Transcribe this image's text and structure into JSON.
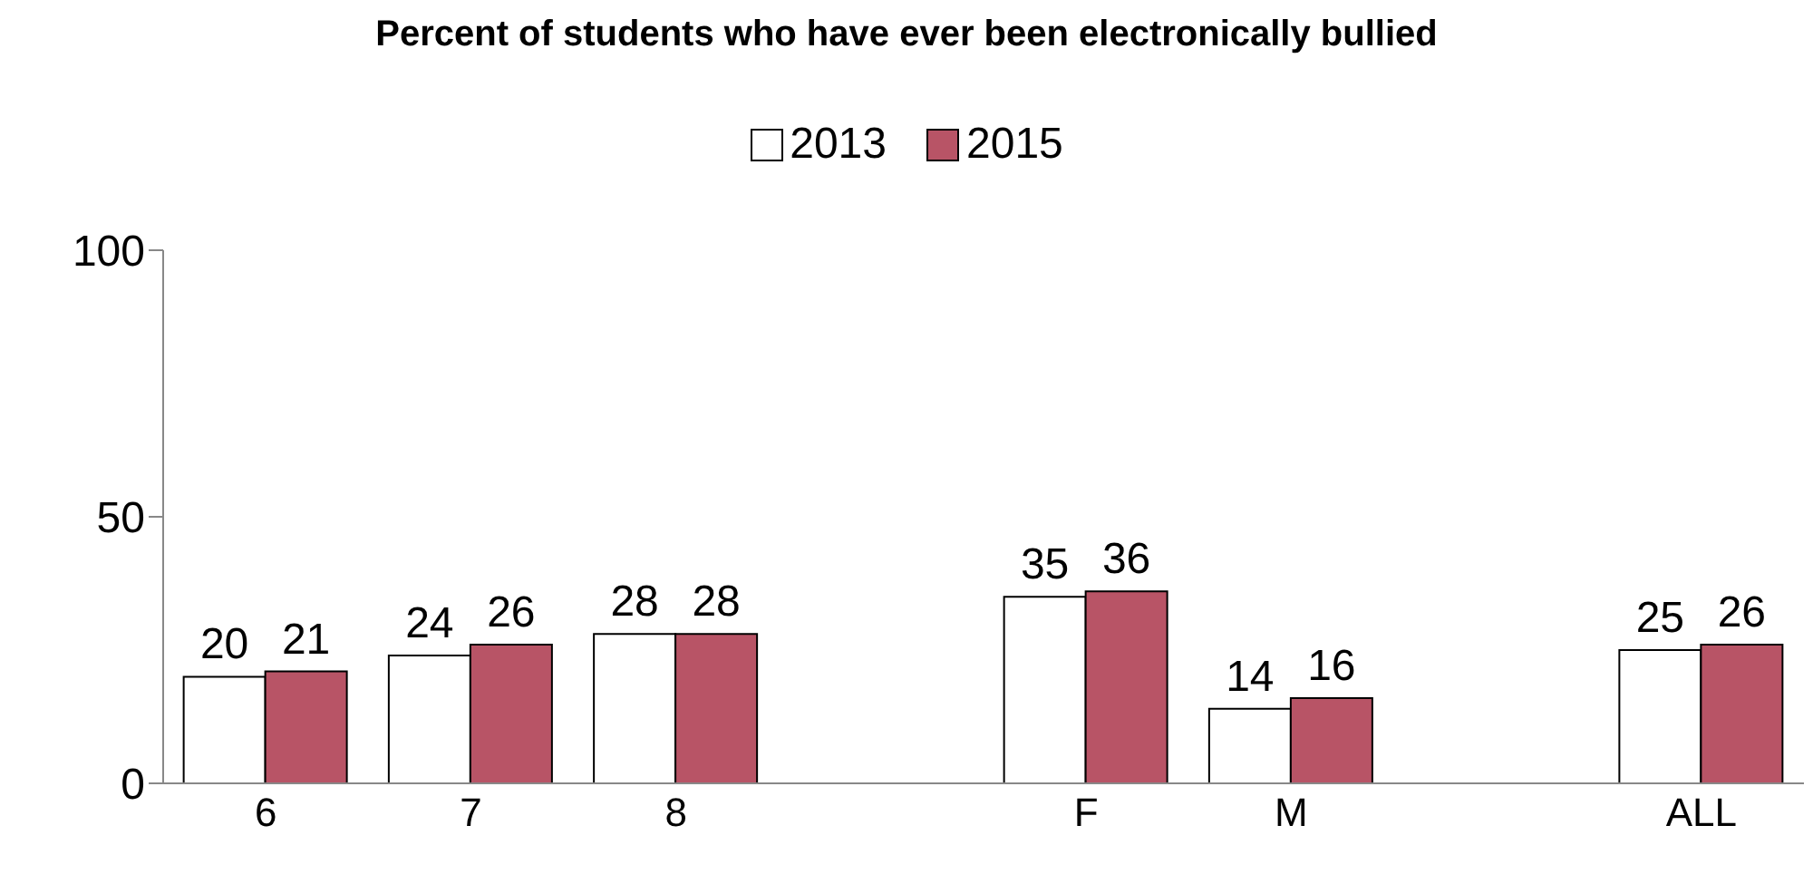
{
  "chart_data": {
    "type": "bar",
    "title": "Percent of students who have ever been electronically bullied",
    "categories": [
      "6",
      "7",
      "8",
      null,
      "F",
      "M",
      null,
      "ALL"
    ],
    "series": [
      {
        "name": "2013",
        "color": "#ffffff",
        "values": [
          20,
          24,
          28,
          null,
          35,
          14,
          null,
          25
        ]
      },
      {
        "name": "2015",
        "color": "#b85466",
        "values": [
          21,
          26,
          28,
          null,
          36,
          16,
          null,
          26
        ]
      }
    ],
    "ylim": [
      0,
      100
    ],
    "yticks": [
      0,
      50,
      100
    ],
    "grid": false,
    "legend": "top",
    "data_labels": true
  }
}
